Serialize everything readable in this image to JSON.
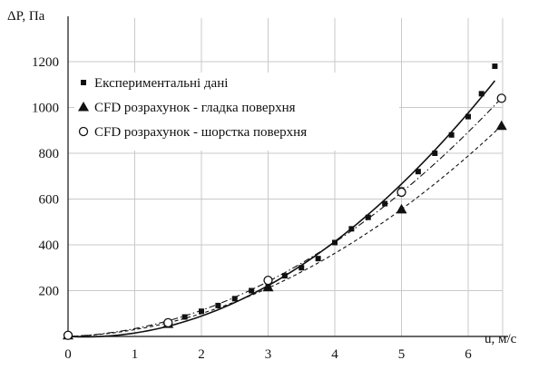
{
  "chart_data": {
    "type": "scatter",
    "title": "",
    "xlabel": "u, м/с",
    "ylabel": "ΔP, Па",
    "xlim": [
      0,
      6.5
    ],
    "ylim": [
      0,
      1200
    ],
    "x_ticks": [
      "0",
      "1",
      "2",
      "3",
      "4",
      "5",
      "6"
    ],
    "y_ticks": [
      "200",
      "400",
      "600",
      "800",
      "1000",
      "1200"
    ],
    "grid": true,
    "legend_position": "top-left",
    "series": [
      {
        "name": "Експериментальні дані",
        "marker": "square",
        "line_style": "solid",
        "x": [
          0,
          1.5,
          1.75,
          2.0,
          2.25,
          2.5,
          2.75,
          3.0,
          3.25,
          3.5,
          3.75,
          4.0,
          4.25,
          4.5,
          4.75,
          5.0,
          5.25,
          5.5,
          5.75,
          6.0,
          6.2,
          6.4
        ],
        "y": [
          5,
          65,
          85,
          110,
          135,
          165,
          200,
          225,
          265,
          300,
          340,
          410,
          470,
          520,
          580,
          640,
          720,
          800,
          880,
          960,
          1060,
          1180
        ]
      },
      {
        "name": "CFD розрахунок - гладка поверхня",
        "marker": "triangle",
        "line_style": "dashed",
        "x": [
          0,
          1.5,
          3.0,
          5.0,
          6.5
        ],
        "y": [
          5,
          55,
          215,
          555,
          920
        ]
      },
      {
        "name": "CFD розрахунок - шорстка поверхня",
        "marker": "circle-open",
        "line_style": "dash-dot",
        "x": [
          0,
          1.5,
          3.0,
          5.0,
          6.5
        ],
        "y": [
          5,
          60,
          245,
          630,
          1040
        ]
      }
    ]
  }
}
